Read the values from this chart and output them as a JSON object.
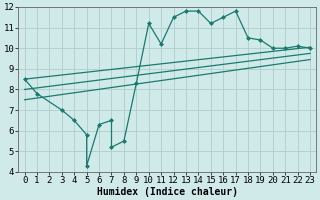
{
  "line1_x": [
    0,
    1,
    3,
    4,
    5,
    5,
    6,
    7,
    7,
    8,
    9,
    10,
    11,
    12,
    13,
    14,
    15,
    16,
    17,
    18,
    19,
    20,
    21,
    22,
    23
  ],
  "line1_y": [
    8.5,
    7.8,
    7.0,
    6.5,
    5.8,
    4.3,
    6.3,
    6.5,
    5.2,
    5.5,
    8.3,
    11.2,
    10.2,
    11.5,
    11.8,
    11.8,
    11.2,
    11.5,
    11.8,
    10.5,
    10.4,
    10.0,
    10.0,
    10.1,
    10.0
  ],
  "line3_x": [
    0,
    23
  ],
  "line3_y": [
    8.5,
    10.05
  ],
  "line4_x": [
    0,
    23
  ],
  "line4_y": [
    8.0,
    9.75
  ],
  "line5_x": [
    0,
    23
  ],
  "line5_y": [
    7.5,
    9.45
  ],
  "color": "#1a7a6e",
  "bg_color": "#d0eaea",
  "grid_color": "#b0cccc",
  "xlabel": "Humidex (Indice chaleur)",
  "xlim": [
    -0.5,
    23.5
  ],
  "ylim": [
    4,
    12
  ],
  "xticks": [
    0,
    1,
    2,
    3,
    4,
    5,
    6,
    7,
    8,
    9,
    10,
    11,
    12,
    13,
    14,
    15,
    16,
    17,
    18,
    19,
    20,
    21,
    22,
    23
  ],
  "yticks": [
    4,
    5,
    6,
    7,
    8,
    9,
    10,
    11,
    12
  ],
  "fontsize_xlabel": 7,
  "fontsize_ticks": 6.5
}
